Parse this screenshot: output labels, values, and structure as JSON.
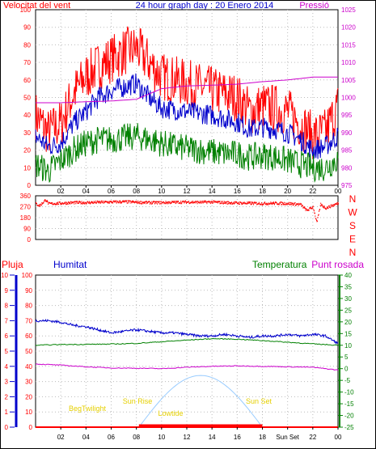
{
  "chart_data": [
    {
      "type": "line",
      "title": "24 hour graph day : 20 Enero 2014",
      "left_axis_label": "Velocitat del vent",
      "right_axis_label": "Pressió",
      "x_ticks": [
        "02",
        "04",
        "06",
        "08",
        "10",
        "12",
        "14",
        "16",
        "18",
        "20",
        "22",
        "00"
      ],
      "ylim_left": [
        0,
        100
      ],
      "left_ticks": [
        0,
        10,
        20,
        30,
        40,
        50,
        60,
        70,
        80,
        90,
        100
      ],
      "ylim_right": [
        975,
        1025
      ],
      "right_ticks": [
        975,
        980,
        985,
        990,
        995,
        1000,
        1005,
        1010,
        1015,
        1020,
        1025
      ],
      "series": [
        {
          "name": "",
          "color": "#ff0000",
          "axis": "left",
          "x": [
            0,
            1,
            2,
            3,
            4,
            5,
            6,
            7,
            8,
            9,
            10,
            11,
            12,
            13,
            14,
            15,
            16,
            17,
            18,
            19,
            20,
            21,
            22,
            23,
            24
          ],
          "values": [
            40,
            30,
            35,
            52,
            62,
            68,
            72,
            76,
            78,
            70,
            62,
            60,
            58,
            56,
            54,
            52,
            50,
            42,
            45,
            44,
            42,
            35,
            28,
            30,
            45
          ]
        },
        {
          "name": "",
          "color": "#0000cc",
          "axis": "left",
          "x": [
            0,
            1,
            2,
            3,
            4,
            5,
            6,
            7,
            8,
            9,
            10,
            11,
            12,
            13,
            14,
            15,
            16,
            17,
            18,
            19,
            20,
            21,
            22,
            23,
            24
          ],
          "values": [
            28,
            22,
            24,
            35,
            42,
            50,
            54,
            56,
            58,
            50,
            44,
            43,
            42,
            41,
            40,
            38,
            36,
            32,
            33,
            32,
            30,
            26,
            20,
            22,
            28
          ]
        },
        {
          "name": "",
          "color": "#008000",
          "axis": "left",
          "x": [
            0,
            1,
            2,
            3,
            4,
            5,
            6,
            7,
            8,
            9,
            10,
            11,
            12,
            13,
            14,
            15,
            16,
            17,
            18,
            19,
            20,
            21,
            22,
            23,
            24
          ],
          "values": [
            12,
            8,
            14,
            20,
            24,
            26,
            26,
            27,
            28,
            26,
            24,
            22,
            21,
            20,
            19,
            18,
            18,
            16,
            17,
            16,
            14,
            12,
            10,
            10,
            15
          ]
        },
        {
          "name": "",
          "color": "#cc00cc",
          "axis": "right",
          "x": [
            0,
            2,
            4,
            6,
            8,
            10,
            12,
            14,
            16,
            18,
            20,
            22,
            24
          ],
          "values": [
            998.5,
            998.5,
            998.8,
            999.0,
            999.5,
            1002.5,
            1003.3,
            1003.5,
            1003.8,
            1004.5,
            1005.0,
            1005.8,
            1005.8
          ]
        }
      ]
    },
    {
      "type": "scatter",
      "y_ticks": [
        0,
        90,
        180,
        270,
        360
      ],
      "ylim": [
        0,
        360
      ],
      "compass": [
        "N",
        "W",
        "S",
        "E",
        "N"
      ],
      "series": [
        {
          "name": "",
          "color": "#ff0000",
          "x": [
            0,
            0.3,
            0.8,
            1,
            2,
            3,
            4,
            5,
            6,
            7,
            8,
            9,
            10,
            11,
            12,
            13,
            14,
            15,
            16,
            17,
            18,
            19,
            20,
            21,
            21.5,
            22,
            22.3,
            22.6,
            23,
            24
          ],
          "values": [
            295,
            280,
            330,
            295,
            300,
            305,
            305,
            308,
            310,
            312,
            308,
            305,
            305,
            308,
            310,
            308,
            310,
            305,
            302,
            300,
            298,
            300,
            298,
            290,
            240,
            270,
            140,
            290,
            260,
            300
          ]
        }
      ]
    },
    {
      "type": "line",
      "labels": {
        "rain": "Pluja",
        "humidity": "Humitat",
        "temperature": "Temperatura",
        "dewpoint": "Punt rosada"
      },
      "x_ticks": [
        "02",
        "04",
        "06",
        "08",
        "10",
        "12",
        "14",
        "16",
        "18",
        "Sun Set",
        "22",
        "00"
      ],
      "ylim_rain": [
        0,
        10
      ],
      "rain_ticks": [
        0,
        1,
        2,
        3,
        4,
        5,
        6,
        7,
        8,
        9,
        10
      ],
      "ylim_humidity": [
        0,
        100
      ],
      "humidity_ticks": [
        0,
        10,
        20,
        30,
        40,
        50,
        60,
        70,
        80,
        90,
        100
      ],
      "ylim_temp": [
        -25,
        40
      ],
      "temp_ticks": [
        -25,
        -20,
        -15,
        -10,
        -5,
        0,
        5,
        10,
        15,
        20,
        25,
        30,
        35,
        40
      ],
      "annotations": {
        "begin_twilight": "BegTwilight",
        "sun_rise": "Sun Rise",
        "low_tide": "Lowtide",
        "sun_set": "Sun Set"
      },
      "sun_rise_hour": 8.2,
      "sun_set_hour": 18.0,
      "sun_arc_peak": 34,
      "series": [
        {
          "name": "Humitat",
          "color": "#0000cc",
          "axis": "humidity",
          "x": [
            0,
            1,
            2,
            3,
            4,
            5,
            6,
            7,
            8,
            9,
            10,
            11,
            12,
            13,
            14,
            15,
            16,
            17,
            18,
            19,
            20,
            21,
            22,
            23,
            24
          ],
          "values": [
            70,
            70,
            69,
            67,
            66,
            64,
            62,
            63,
            64,
            63,
            62,
            62,
            61,
            60,
            60,
            61,
            60,
            59,
            60,
            60,
            61,
            60,
            61,
            60,
            55
          ]
        },
        {
          "name": "Temperatura",
          "color": "#008000",
          "axis": "temp",
          "x": [
            0,
            2,
            4,
            6,
            8,
            10,
            12,
            14,
            16,
            18,
            20,
            22,
            24
          ],
          "values": [
            10.0,
            10.3,
            10.4,
            10.5,
            10.8,
            11.5,
            12.2,
            12.8,
            12.6,
            12.0,
            11.3,
            10.6,
            10.0
          ]
        },
        {
          "name": "Punt rosada",
          "color": "#cc00cc",
          "axis": "temp",
          "x": [
            0,
            2,
            4,
            6,
            8,
            10,
            12,
            14,
            16,
            18,
            20,
            22,
            24
          ],
          "values": [
            2.0,
            1.5,
            0.8,
            0.3,
            0.2,
            0.0,
            0.6,
            1.0,
            1.2,
            1.0,
            0.8,
            0.6,
            -0.6
          ]
        },
        {
          "name": "Pluja",
          "color": "#ff0000",
          "axis": "rain",
          "x": [
            0,
            24
          ],
          "values": [
            0,
            0
          ]
        }
      ]
    }
  ]
}
